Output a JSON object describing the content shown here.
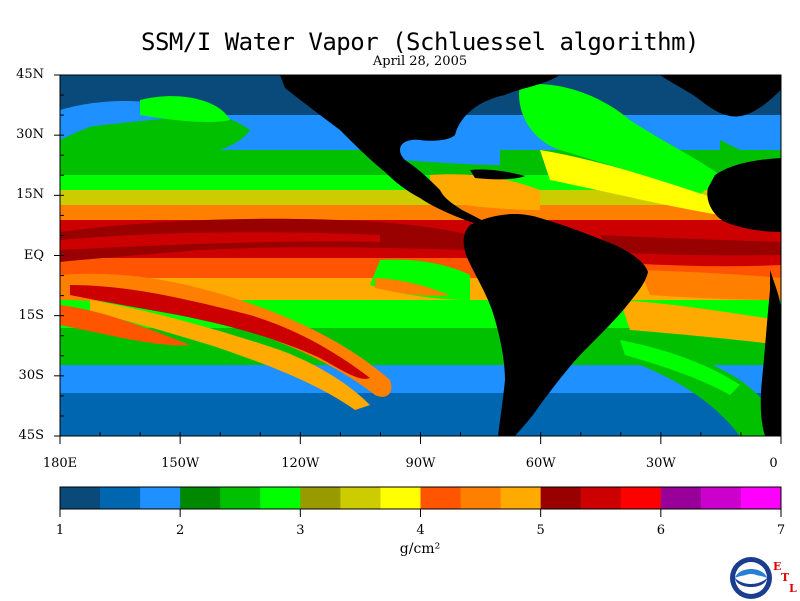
{
  "title": "SSM/I Water Vapor (Schluessel algorithm)",
  "date": "April 28, 2005",
  "lat_ticks": [
    "45N",
    "30N",
    "15N",
    "EQ",
    "15S",
    "30S",
    "45S"
  ],
  "lon_ticks": [
    "180E",
    "150W",
    "120W",
    "90W",
    "60W",
    "30W",
    "0"
  ],
  "colorbar": {
    "unit": "g/cm²",
    "labels": [
      "1",
      "2",
      "3",
      "4",
      "5",
      "6",
      "7"
    ],
    "colors": [
      "#0a4a7a",
      "#0066b0",
      "#1e90ff",
      "#008800",
      "#00c000",
      "#00ff00",
      "#999900",
      "#cccc00",
      "#ffff00",
      "#ff5500",
      "#ff8000",
      "#ffaa00",
      "#990000",
      "#cc0000",
      "#ff0000",
      "#990099",
      "#cc00cc",
      "#ff00ff"
    ],
    "land_color": "#000000"
  },
  "logo": {
    "org": "NOAA",
    "lab_letters": [
      "E",
      "T",
      "L"
    ]
  }
}
